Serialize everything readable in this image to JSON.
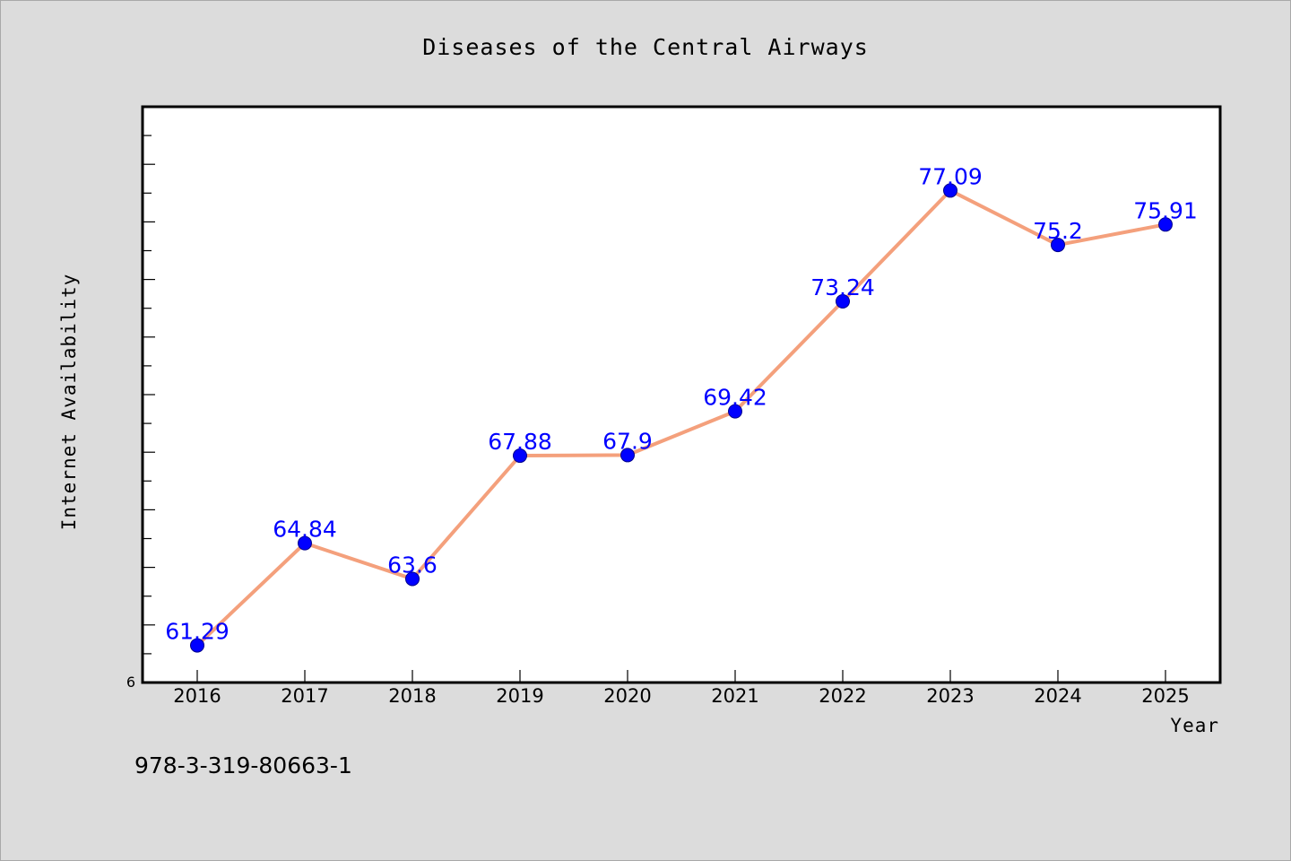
{
  "chart_data": {
    "type": "line",
    "title": "Diseases of the Central Airways",
    "xlabel": "Year",
    "ylabel": "Internet Availability",
    "ylim": [
      60,
      80
    ],
    "y_tick_label": "6",
    "categories": [
      "2016",
      "2017",
      "2018",
      "2019",
      "2020",
      "2021",
      "2022",
      "2023",
      "2024",
      "2025"
    ],
    "series": [
      {
        "values": [
          61.29,
          64.84,
          63.6,
          67.88,
          67.9,
          69.42,
          73.24,
          77.09,
          75.2,
          75.91
        ],
        "labels": [
          "61.29",
          "64.84",
          "63.6",
          "67.88",
          "67.9",
          "69.42",
          "73.24",
          "77.09",
          "75.2",
          "75.91"
        ],
        "line_color": "#f4a07c",
        "marker_color": "#0000ff",
        "label_color": "#0000ff"
      }
    ],
    "grid": false,
    "legend": "none"
  },
  "footer": {
    "isbn": "978-3-319-80663-1"
  }
}
